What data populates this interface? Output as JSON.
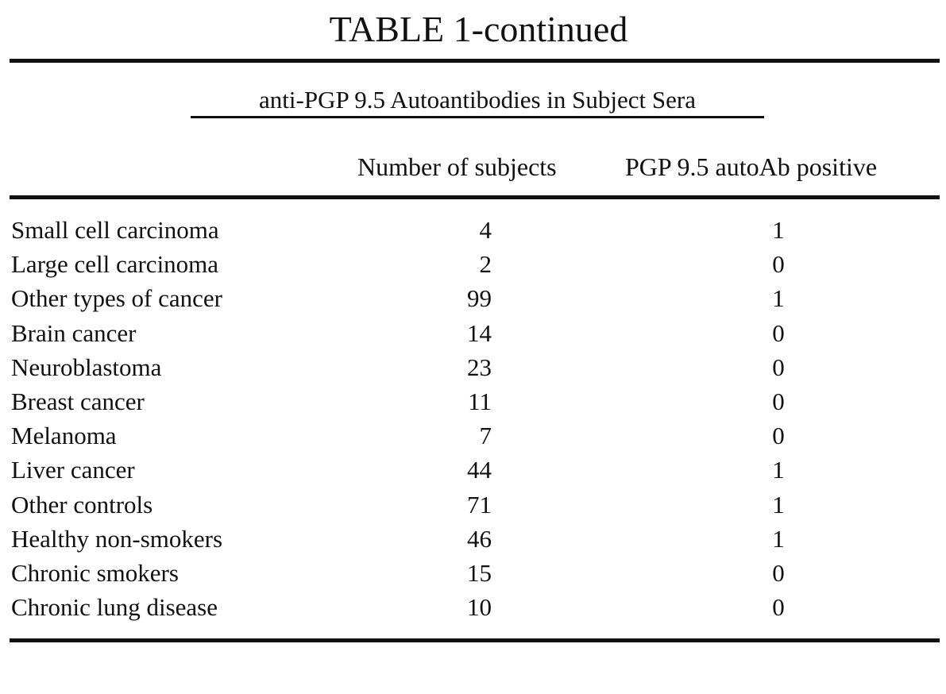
{
  "header": {
    "title": "TABLE 1-continued",
    "subtitle": "anti-PGP 9.5 Autoantibodies in Subject Sera"
  },
  "table": {
    "columns": [
      "Number of subjects",
      "PGP 9.5 autoAb positive"
    ],
    "rows": [
      [
        "Small cell carcinoma",
        4,
        1
      ],
      [
        "Large cell carcinoma",
        2,
        0
      ],
      [
        "Other types of cancer",
        99,
        1
      ],
      [
        "Brain cancer",
        14,
        0
      ],
      [
        "Neuroblastoma",
        23,
        0
      ],
      [
        "Breast cancer",
        11,
        0
      ],
      [
        "Melanoma",
        7,
        0
      ],
      [
        "Liver cancer",
        44,
        1
      ],
      [
        "Other controls",
        71,
        1
      ],
      [
        "Healthy non-smokers",
        46,
        1
      ],
      [
        "Chronic smokers",
        15,
        0
      ],
      [
        "Chronic lung disease",
        10,
        0
      ]
    ]
  }
}
